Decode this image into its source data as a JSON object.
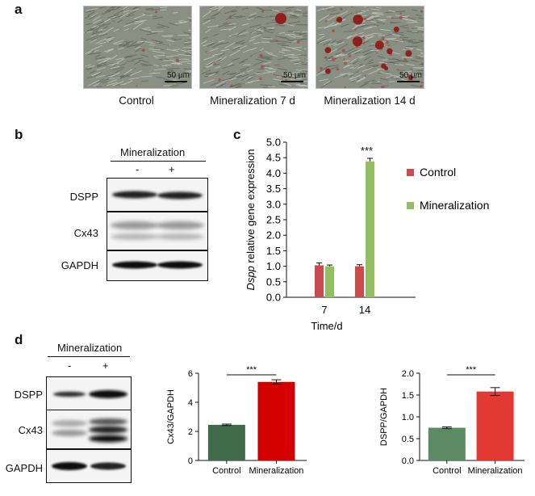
{
  "panel_a": {
    "letter": "a",
    "images": [
      {
        "caption": "Control",
        "scale_label": "50 μm",
        "red_level": 0.15,
        "nodules": 0
      },
      {
        "caption": "Mineralization 7 d",
        "scale_label": "50 μm",
        "red_level": 0.35,
        "nodules": 1
      },
      {
        "caption": "Mineralization 14 d",
        "scale_label": "50 μm",
        "red_level": 0.9,
        "nodules": 12
      }
    ]
  },
  "panel_b": {
    "letter": "b",
    "group_label": "Mineralization",
    "lanes": [
      "-",
      "+"
    ],
    "rows": [
      "DSPP",
      "Cx43",
      "GAPDH"
    ]
  },
  "panel_c": {
    "letter": "c",
    "chart_data": {
      "type": "bar",
      "categories": [
        "7",
        "14"
      ],
      "series": [
        {
          "name": "Control",
          "values": [
            1.03,
            1.0
          ],
          "errors": [
            0.08,
            0.05
          ],
          "color": "#c94a4f"
        },
        {
          "name": "Mineralization",
          "values": [
            1.0,
            4.38
          ],
          "errors": [
            0.04,
            0.1
          ],
          "color": "#92c060"
        }
      ],
      "xlabel": "Time/d",
      "ylabel_italic": "Dspp",
      "ylabel_rest": " relative gene expression",
      "ylim": [
        0,
        5.0
      ],
      "yticks": [
        "0.0",
        "0.5",
        "1.0",
        "1.5",
        "2.0",
        "2.5",
        "3.0",
        "3.5",
        "4.0",
        "4.5",
        "5.0"
      ],
      "significance": "***",
      "legend_position": "right"
    }
  },
  "panel_d": {
    "letter": "d",
    "blot": {
      "group_label": "Mineralization",
      "lanes": [
        "-",
        "+"
      ],
      "rows": [
        "DSPP",
        "Cx43",
        "GAPDH"
      ]
    },
    "chart_data": [
      {
        "type": "bar",
        "categories": [
          "Control",
          "Mineralization"
        ],
        "values": [
          2.45,
          5.4
        ],
        "errors": [
          0.05,
          0.15
        ],
        "colors": [
          "#3f6b4b",
          "#d40000"
        ],
        "ylabel": "Cx43/GAPDH",
        "ylim": [
          0,
          6
        ],
        "yticks": [
          "0",
          "2",
          "4",
          "6"
        ],
        "significance": "***"
      },
      {
        "type": "bar",
        "categories": [
          "Control",
          "Mineralization"
        ],
        "values": [
          0.75,
          1.58
        ],
        "errors": [
          0.02,
          0.09
        ],
        "colors": [
          "#5b8a63",
          "#e23a32"
        ],
        "ylabel": "DSPP/GAPDH",
        "ylim": [
          0,
          2.0
        ],
        "yticks": [
          "0.0",
          "0.5",
          "1.0",
          "1.5",
          "2.0"
        ],
        "significance": "***"
      }
    ]
  }
}
